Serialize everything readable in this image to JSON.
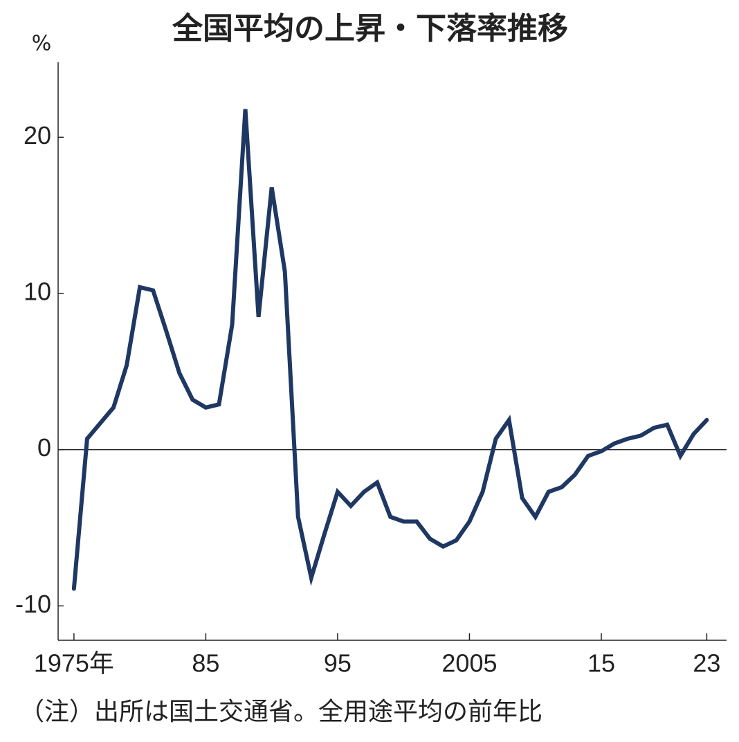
{
  "chart_data": {
    "type": "line",
    "title": "全国平均の上昇・下落率推移",
    "y_unit": "%",
    "note": "（注）出所は国土交通省。全用途平均の前年比",
    "x": [
      1975,
      1976,
      1977,
      1978,
      1979,
      1980,
      1981,
      1982,
      1983,
      1984,
      1985,
      1986,
      1987,
      1988,
      1989,
      1990,
      1991,
      1992,
      1993,
      1994,
      1995,
      1996,
      1997,
      1998,
      1999,
      2000,
      2001,
      2002,
      2003,
      2004,
      2005,
      2006,
      2007,
      2008,
      2009,
      2010,
      2011,
      2012,
      2013,
      2014,
      2015,
      2016,
      2017,
      2018,
      2019,
      2020,
      2021,
      2022,
      2023
    ],
    "values": [
      -8.9,
      0.7,
      1.7,
      2.7,
      5.4,
      10.4,
      10.2,
      7.6,
      4.9,
      3.2,
      2.7,
      2.9,
      8.0,
      21.8,
      8.5,
      16.8,
      11.4,
      -4.3,
      -8.2,
      -5.4,
      -2.7,
      -3.6,
      -2.7,
      -2.1,
      -4.3,
      -4.6,
      -4.6,
      -5.7,
      -6.2,
      -5.8,
      -4.6,
      -2.7,
      0.7,
      1.9,
      -3.1,
      -4.3,
      -2.7,
      -2.4,
      -1.6,
      -0.4,
      -0.1,
      0.4,
      0.7,
      0.9,
      1.4,
      1.6,
      -0.4,
      1.0,
      1.9
    ],
    "color": "#1f3763",
    "xlim": [
      1973.8,
      2024.5
    ],
    "xticks": [
      {
        "value": 1975,
        "label": "1975年"
      },
      {
        "value": 1985,
        "label": "85"
      },
      {
        "value": 1995,
        "label": "95"
      },
      {
        "value": 2005,
        "label": "2005"
      },
      {
        "value": 2015,
        "label": "15"
      },
      {
        "value": 2023,
        "label": "23"
      }
    ],
    "ylim": [
      -12.2,
      24.8
    ],
    "yticks": [
      -10,
      0,
      10,
      20
    ],
    "grid": false
  }
}
